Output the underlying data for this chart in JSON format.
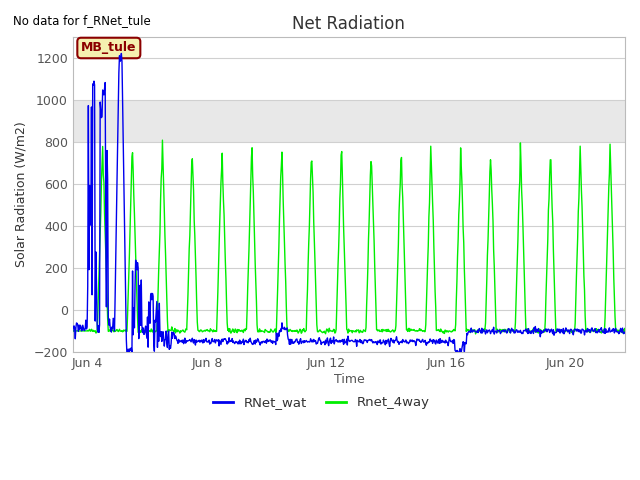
{
  "title": "Net Radiation",
  "top_left_text": "No data for f_RNet_tule",
  "xlabel": "Time",
  "ylabel": "Solar Radiation (W/m2)",
  "ylim": [
    -200,
    1300
  ],
  "yticks": [
    -200,
    0,
    200,
    400,
    600,
    800,
    1000,
    1200
  ],
  "legend_box_label": "MB_tule",
  "legend_box_color": "#f5f0b0",
  "legend_box_border": "#8b0000",
  "legend_entries": [
    "RNet_wat",
    "Rnet_4way"
  ],
  "line_colors": [
    "#0000ee",
    "#00ee00"
  ],
  "background_color": "#ffffff",
  "plot_bg_color": "#ffffff",
  "gray_band_ymin": 800,
  "gray_band_ymax": 1000,
  "gray_band_color": "#e8e8e8",
  "xtick_labels": [
    "Jun 4",
    "Jun 8",
    "Jun 12",
    "Jun 16",
    "Jun 20"
  ],
  "xtick_positions": [
    4,
    8,
    12,
    16,
    20
  ],
  "xmin": 3.5,
  "xmax": 22.0
}
